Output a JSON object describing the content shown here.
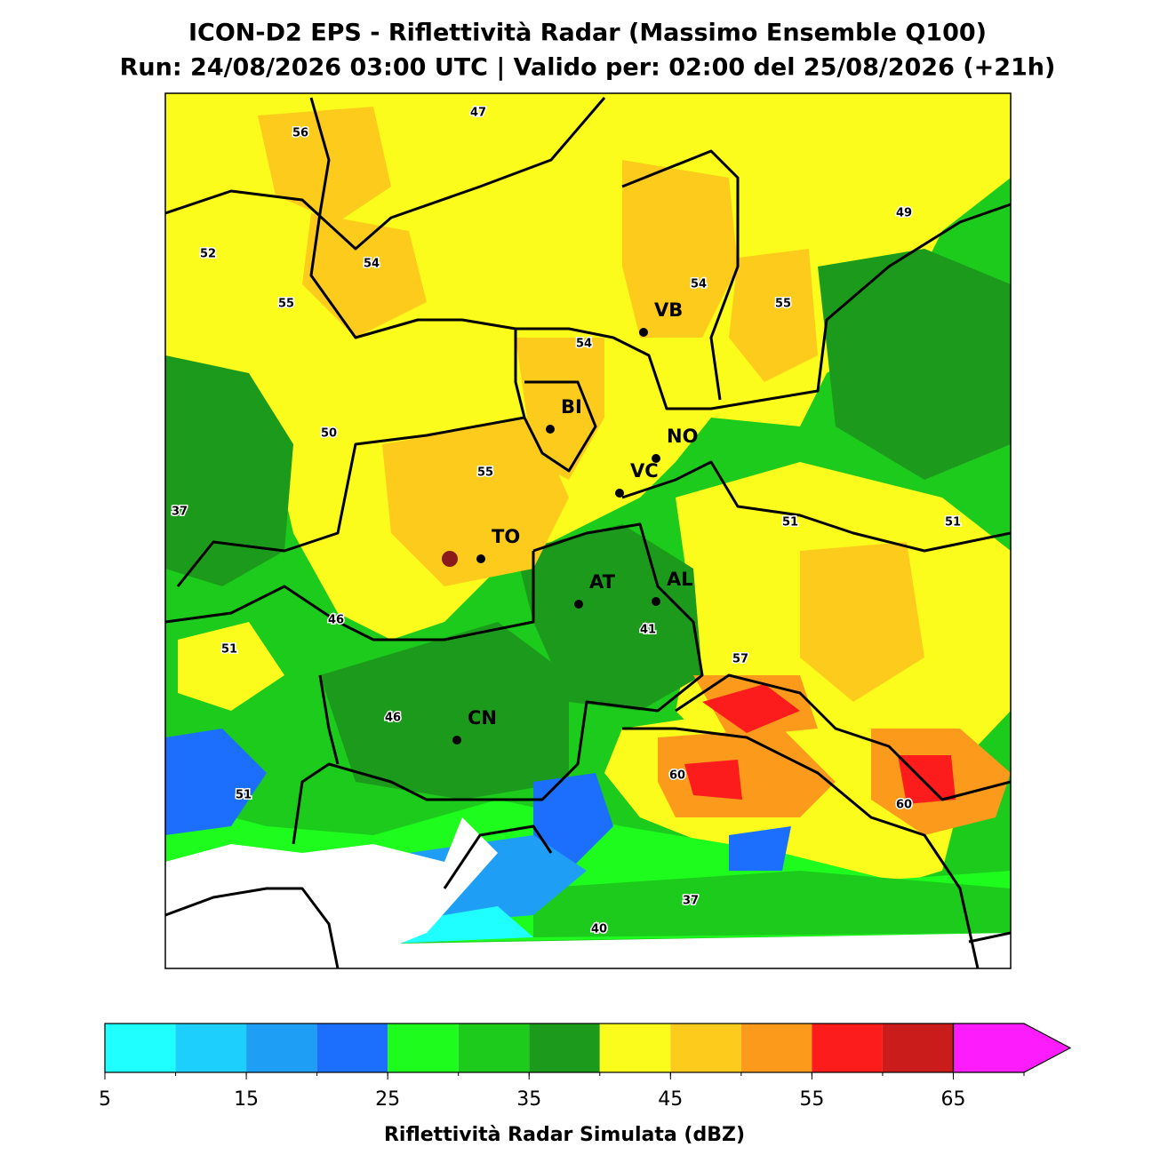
{
  "header": {
    "title": "ICON-D2 EPS - Riflettività Radar (Massimo Ensemble Q100)",
    "subtitle": "Run: 24/08/2026 03:00 UTC | Valido per: 02:00 del 25/08/2026 (+21h)"
  },
  "map": {
    "cities": [
      "VB",
      "BI",
      "NO",
      "VC",
      "TO",
      "AT",
      "AL",
      "CN"
    ],
    "contour_labels": [
      47,
      56,
      49,
      52,
      54,
      54,
      55,
      55,
      54,
      50,
      55,
      37,
      51,
      51,
      46,
      41,
      51,
      57,
      46,
      60,
      51,
      60,
      37,
      40
    ]
  },
  "colorbar": {
    "label": "Riflettività Radar Simulata (dBZ)",
    "levels": [
      5,
      10,
      15,
      20,
      25,
      30,
      35,
      40,
      45,
      50,
      55,
      60,
      65,
      70
    ],
    "colors": [
      "#20ffff",
      "#1ccffc",
      "#1e9ef5",
      "#1c6ffc",
      "#1efc1e",
      "#1ccb1c",
      "#1c9a1c",
      "#fcfc1c",
      "#fccb1c",
      "#fc9a1c",
      "#fc1c1c",
      "#cb1c1c"
    ],
    "extend_color": "#fc1cfc",
    "ticks": [
      5,
      15,
      25,
      35,
      45,
      55,
      65
    ]
  }
}
